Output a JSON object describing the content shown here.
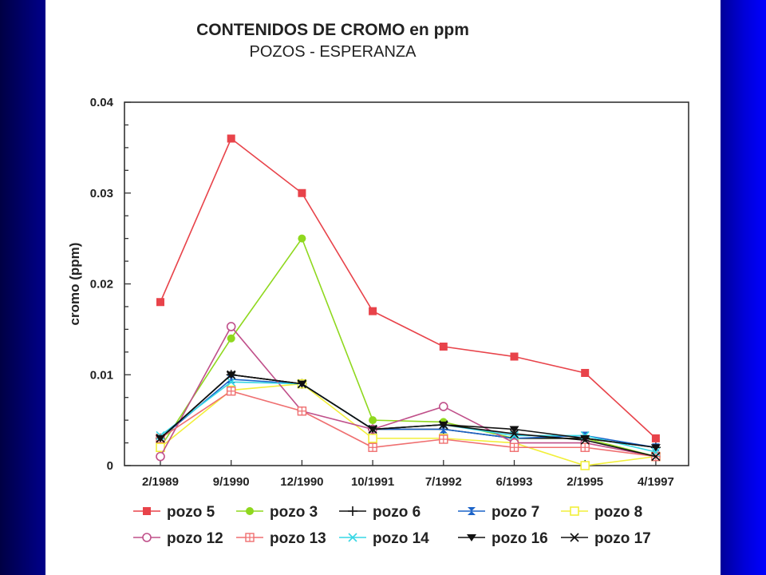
{
  "chart_data": {
    "type": "line",
    "title": "CONTENIDOS DE CROMO en ppm",
    "subtitle": "POZOS - ESPERANZA",
    "ylabel": "cromo (ppm)",
    "xlabel": "",
    "categories": [
      "2/1989",
      "9/1990",
      "12/1990",
      "10/1991",
      "7/1992",
      "6/1993",
      "2/1995",
      "4/1997"
    ],
    "ylim": [
      0,
      0.04
    ],
    "yticks": [
      {
        "value": 0.04,
        "label": "0.04"
      },
      {
        "value": 0.03,
        "label": "0.03"
      },
      {
        "value": 0.02,
        "label": "0.02"
      },
      {
        "value": 0.01,
        "label": "0.01"
      },
      {
        "value": 0,
        "label": "0"
      }
    ],
    "legend_position": "bottom",
    "series": [
      {
        "name": "pozo 5",
        "color": "#e8434a",
        "marker": "square-filled",
        "values": [
          0.018,
          0.036,
          0.03,
          0.017,
          0.0131,
          0.012,
          0.0102,
          0.003
        ]
      },
      {
        "name": "pozo 3",
        "color": "#8fd81e",
        "marker": "circle-filled",
        "values": [
          0.002,
          0.014,
          0.025,
          0.005,
          0.0048,
          0.003,
          0.003,
          0.001
        ]
      },
      {
        "name": "pozo 6",
        "color": "#111111",
        "marker": "plus",
        "values": [
          0.003,
          0.01,
          0.009,
          0.004,
          0.004,
          0.003,
          0.003,
          0.002
        ]
      },
      {
        "name": "pozo 7",
        "color": "#1b63c8",
        "marker": "bowtie",
        "values": [
          0.003,
          0.0095,
          0.009,
          0.004,
          0.004,
          0.003,
          0.0033,
          0.002
        ]
      },
      {
        "name": "pozo 8",
        "color": "#f2ef3a",
        "marker": "square-open",
        "values": [
          0.002,
          0.0083,
          0.009,
          0.003,
          0.003,
          0.0025,
          0.0,
          0.001
        ]
      },
      {
        "name": "pozo 12",
        "color": "#c0508a",
        "marker": "circle-open",
        "values": [
          0.001,
          0.0153,
          0.006,
          0.004,
          0.0065,
          0.0025,
          0.0025,
          0.001
        ]
      },
      {
        "name": "pozo 13",
        "color": "#ef6f70",
        "marker": "square-cross",
        "values": [
          0.003,
          0.0082,
          0.006,
          0.002,
          0.0029,
          0.002,
          0.002,
          0.001
        ]
      },
      {
        "name": "pozo 14",
        "color": "#37d7e5",
        "marker": "x",
        "values": [
          0.0033,
          0.0092,
          0.009,
          0.004,
          0.0045,
          0.0033,
          0.0033,
          0.0015
        ]
      },
      {
        "name": "pozo 16",
        "color": "#111111",
        "marker": "triangle-down",
        "values": [
          0.003,
          0.01,
          0.009,
          0.004,
          0.0045,
          0.004,
          0.003,
          0.002
        ]
      },
      {
        "name": "pozo 17",
        "color": "#111111",
        "marker": "x",
        "values": [
          0.003,
          0.01,
          0.009,
          0.004,
          0.0045,
          0.0035,
          0.0028,
          0.001
        ]
      }
    ]
  }
}
